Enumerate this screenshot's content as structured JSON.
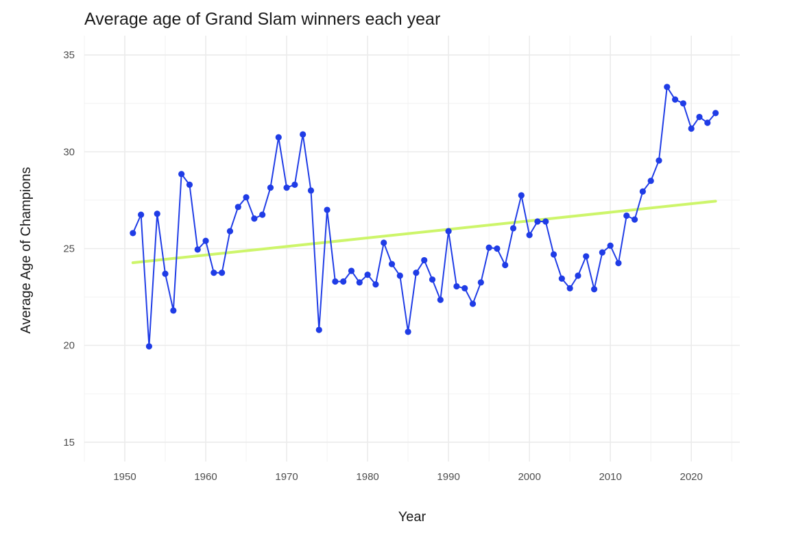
{
  "chart_data": {
    "type": "line",
    "title": "Average age of Grand Slam winners each year",
    "xlabel": "Year",
    "ylabel": "Average Age of Champions",
    "xlim": [
      1945,
      2026
    ],
    "ylim": [
      14,
      36
    ],
    "x_ticks": [
      1950,
      1960,
      1970,
      1980,
      1990,
      2000,
      2010,
      2020
    ],
    "y_ticks": [
      15,
      20,
      25,
      30,
      35
    ],
    "grid": true,
    "legend": "none",
    "series": [
      {
        "color": "#1f3ce6",
        "markers": true,
        "x": [
          1951,
          1952,
          1953,
          1954,
          1955,
          1956,
          1957,
          1958,
          1959,
          1960,
          1961,
          1962,
          1963,
          1964,
          1965,
          1966,
          1967,
          1968,
          1969,
          1970,
          1971,
          1972,
          1973,
          1974,
          1975,
          1976,
          1977,
          1978,
          1979,
          1980,
          1981,
          1982,
          1983,
          1984,
          1985,
          1986,
          1987,
          1988,
          1989,
          1990,
          1991,
          1992,
          1993,
          1994,
          1995,
          1996,
          1997,
          1998,
          1999,
          2000,
          2001,
          2002,
          2003,
          2004,
          2005,
          2006,
          2007,
          2008,
          2009,
          2010,
          2011,
          2012,
          2013,
          2014,
          2015,
          2016,
          2017,
          2018,
          2019,
          2020,
          2021,
          2022,
          2023
        ],
        "y": [
          25.8,
          26.75,
          19.95,
          26.8,
          23.7,
          21.8,
          28.85,
          28.3,
          24.95,
          25.4,
          23.75,
          23.75,
          25.9,
          27.15,
          27.65,
          26.55,
          26.75,
          28.15,
          30.75,
          28.15,
          28.3,
          30.9,
          28.0,
          20.8,
          27.0,
          23.3,
          23.3,
          23.85,
          23.25,
          23.65,
          23.15,
          25.3,
          24.2,
          23.6,
          20.7,
          23.75,
          24.4,
          23.4,
          22.35,
          25.9,
          23.05,
          22.95,
          22.15,
          23.25,
          25.05,
          25.0,
          24.15,
          26.05,
          27.75,
          25.7,
          26.4,
          26.4,
          24.7,
          23.45,
          22.95,
          23.6,
          24.6,
          22.9,
          24.8,
          25.15,
          24.25,
          26.7,
          26.5,
          27.95,
          28.5,
          29.55,
          33.35,
          32.7,
          32.5,
          31.2,
          31.8,
          31.5,
          32.0
        ]
      },
      {
        "type": "trend",
        "color": "#cdf56a",
        "x": [
          1951,
          2023
        ],
        "y": [
          24.27,
          27.45
        ]
      }
    ]
  }
}
